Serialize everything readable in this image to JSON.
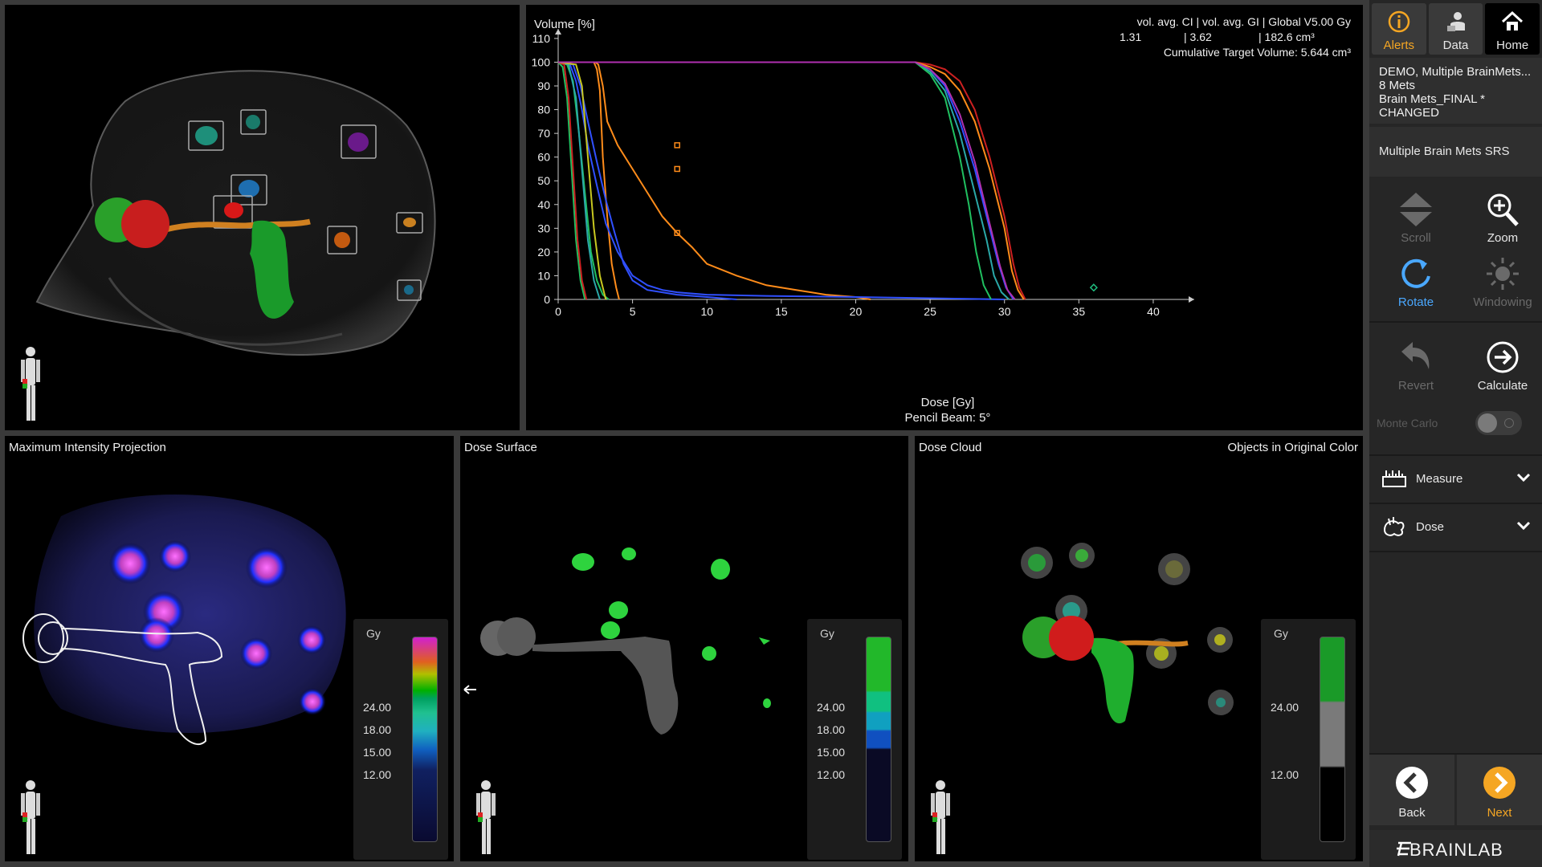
{
  "panels": {
    "mip_title": "Maximum Intensity Projection",
    "surface_title": "Dose Surface",
    "cloud_title": "Dose Cloud",
    "cloud_option": "Objects in Original Color"
  },
  "dvh": {
    "stats_header": "vol. avg. CI  |  vol. avg. GI  |  Global V5.00 Gy",
    "stat_ci": "1.31",
    "stat_gi": "| 3.62",
    "stat_v5": "| 182.6 cm³",
    "cumulative": "Cumulative Target Volume: 5.644 cm³",
    "subtitle": "Pencil Beam: 5°"
  },
  "chart_data": {
    "type": "line",
    "xlabel": "Dose [Gy]",
    "ylabel": "Volume [%]",
    "xlim": [
      0,
      42
    ],
    "ylim": [
      0,
      112
    ],
    "xticks": [
      0,
      5,
      10,
      15,
      20,
      25,
      30,
      35,
      40
    ],
    "yticks": [
      0,
      10,
      20,
      30,
      40,
      50,
      60,
      70,
      80,
      90,
      100,
      110
    ],
    "grid": false,
    "series": [
      {
        "color": "#ff8c1a",
        "x": [
          0,
          2.2,
          2.5,
          2.7,
          3,
          3.3,
          4,
          5,
          6,
          7,
          8,
          9,
          10,
          12,
          14,
          16,
          18,
          20,
          21
        ],
        "y": [
          100,
          100,
          100,
          99,
          90,
          75,
          65,
          55,
          45,
          35,
          28,
          22,
          15,
          10,
          6,
          4,
          2,
          1,
          0
        ]
      },
      {
        "color": "#ff8c1a",
        "x": [
          0,
          2.4,
          2.6,
          2.8,
          3,
          3.3,
          3.6,
          3.9,
          4.1
        ],
        "y": [
          100,
          100,
          97,
          88,
          60,
          35,
          15,
          5,
          0
        ]
      },
      {
        "color": "#3050ff",
        "x": [
          0,
          0.8,
          1.2,
          1.6,
          2,
          2.6,
          3.2,
          4,
          5,
          6,
          7,
          8,
          10,
          14,
          20,
          25,
          30
        ],
        "y": [
          100,
          99,
          92,
          80,
          65,
          48,
          32,
          20,
          10,
          6,
          4,
          3,
          2,
          1.5,
          1,
          0.5,
          0
        ]
      },
      {
        "color": "#3050ff",
        "x": [
          0,
          1,
          1.5,
          2,
          2.6,
          3.2,
          3.8,
          4.4,
          5,
          6,
          8,
          10,
          12
        ],
        "y": [
          100,
          99,
          90,
          75,
          58,
          42,
          28,
          15,
          8,
          4,
          2,
          1,
          0
        ]
      },
      {
        "color": "#20c060",
        "x": [
          0,
          0.6,
          1,
          1.4,
          1.8,
          2.2,
          2.6,
          3,
          3.4
        ],
        "y": [
          100,
          99,
          92,
          70,
          45,
          20,
          8,
          2,
          0
        ]
      },
      {
        "color": "#20c060",
        "x": [
          0,
          0.3,
          0.6,
          0.9,
          1.2,
          1.5,
          1.8
        ],
        "y": [
          100,
          98,
          85,
          55,
          25,
          8,
          0
        ]
      },
      {
        "color": "#2aa8a8",
        "x": [
          0,
          0.7,
          1.2,
          1.6,
          2,
          2.4,
          2.8
        ],
        "y": [
          100,
          99,
          85,
          55,
          25,
          8,
          0
        ]
      },
      {
        "color": "#cc2020",
        "x": [
          0,
          0.4,
          0.7,
          1,
          1.3,
          1.6,
          1.9
        ],
        "y": [
          100,
          99,
          85,
          55,
          25,
          8,
          0
        ]
      },
      {
        "color": "#c8c820",
        "x": [
          0,
          1.2,
          1.6,
          2,
          2.4,
          2.8,
          3.2
        ],
        "y": [
          100,
          99,
          90,
          60,
          30,
          10,
          0
        ]
      },
      {
        "color": "#cc2020",
        "x": [
          0,
          24,
          25,
          26,
          27,
          28,
          29,
          30,
          30.6,
          31,
          31.4
        ],
        "y": [
          100,
          100,
          99,
          97,
          92,
          80,
          60,
          35,
          15,
          5,
          0
        ]
      },
      {
        "color": "#ff8c1a",
        "x": [
          0,
          24,
          25,
          26,
          27,
          28,
          29,
          30,
          30.5,
          30.9,
          31.3
        ],
        "y": [
          100,
          100,
          98,
          95,
          88,
          75,
          55,
          30,
          12,
          4,
          0
        ]
      },
      {
        "color": "#3050ff",
        "x": [
          0,
          24,
          25,
          26,
          27,
          28,
          29,
          29.6,
          30.1,
          30.6
        ],
        "y": [
          100,
          100,
          97,
          90,
          75,
          55,
          30,
          15,
          5,
          0
        ]
      },
      {
        "color": "#2aa8a8",
        "x": [
          0,
          24,
          25,
          26,
          27,
          28,
          28.8,
          29.3,
          29.8,
          30.3
        ],
        "y": [
          100,
          100,
          96,
          88,
          70,
          45,
          25,
          10,
          3,
          0
        ]
      },
      {
        "color": "#20c060",
        "x": [
          0,
          24,
          25,
          26,
          27,
          27.6,
          28.1,
          28.6,
          29.1
        ],
        "y": [
          100,
          100,
          95,
          85,
          60,
          40,
          20,
          6,
          0
        ]
      },
      {
        "color": "#b030b0",
        "x": [
          0,
          24,
          25,
          26,
          27,
          28,
          29,
          29.7,
          30.2,
          30.7
        ],
        "y": [
          100,
          100,
          97,
          91,
          78,
          58,
          32,
          14,
          4,
          0
        ]
      }
    ],
    "markers": [
      {
        "x": 8,
        "y": 65,
        "color": "#ff8c1a",
        "shape": "square"
      },
      {
        "x": 8,
        "y": 55,
        "color": "#ff8c1a",
        "shape": "square"
      },
      {
        "x": 8,
        "y": 28,
        "color": "#ff8c1a",
        "shape": "square"
      },
      {
        "x": 36,
        "y": 5,
        "color": "#20c080",
        "shape": "diamond"
      }
    ]
  },
  "legends": {
    "unit": "Gy",
    "mip_labels": [
      "24.00",
      "18.00",
      "15.00",
      "12.00"
    ],
    "surface_labels": [
      "24.00",
      "18.00",
      "15.00",
      "12.00"
    ],
    "cloud_labels": [
      "24.00",
      "12.00"
    ]
  },
  "sidebar": {
    "tabs": {
      "alerts": "Alerts",
      "data": "Data",
      "home": "Home"
    },
    "info": [
      "DEMO, Multiple BrainMets...",
      "8 Mets",
      "Brain Mets_FINAL *",
      "CHANGED"
    ],
    "task": "Multiple Brain Mets SRS",
    "tools": {
      "scroll": "Scroll",
      "zoom": "Zoom",
      "rotate": "Rotate",
      "windowing": "Windowing",
      "revert": "Revert",
      "calculate": "Calculate"
    },
    "monte_carlo": "Monte Carlo",
    "measure": "Measure",
    "dose": "Dose",
    "back": "Back",
    "next": "Next",
    "brand": "BRAINLAB"
  },
  "colors": {
    "accent_orange": "#f5a623",
    "accent_blue": "#4aa8ff"
  }
}
